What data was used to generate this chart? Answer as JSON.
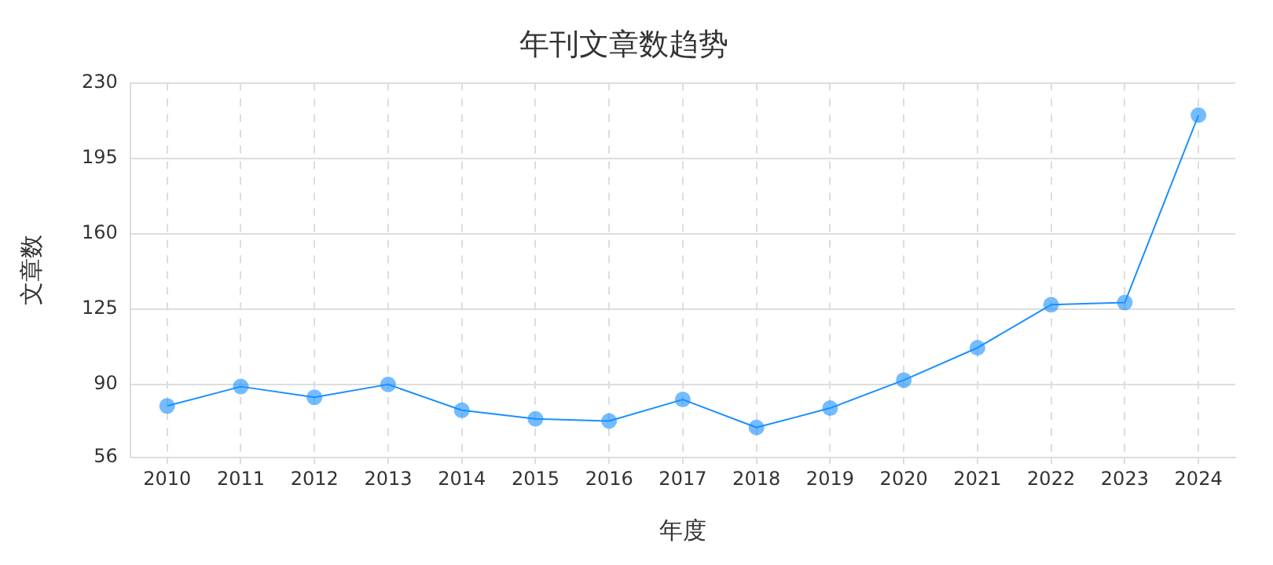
{
  "chart_data": {
    "type": "line",
    "title": "年刊文章数趋势",
    "xlabel": "年度",
    "ylabel": "文章数",
    "categories": [
      "2010",
      "2011",
      "2012",
      "2013",
      "2014",
      "2015",
      "2016",
      "2017",
      "2018",
      "2019",
      "2020",
      "2021",
      "2022",
      "2023",
      "2024"
    ],
    "series": [
      {
        "color": "#1890ff",
        "values": [
          80,
          89,
          84,
          90,
          78,
          74,
          73,
          83,
          70,
          79,
          92,
          107,
          127,
          128,
          215
        ]
      }
    ],
    "ylim": [
      56,
      230
    ],
    "yticks": [
      56,
      90,
      125,
      160,
      195,
      230
    ],
    "grid": true,
    "legend": false,
    "marker": "circle",
    "line_style": "solid"
  }
}
